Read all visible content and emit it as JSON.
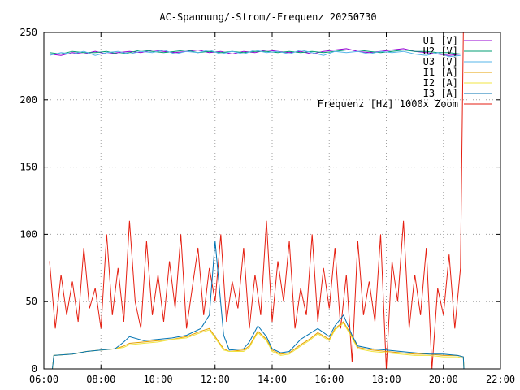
{
  "chart_data": {
    "type": "line",
    "title": "AC-Spannung/-Strom/-Frequenz 20250730",
    "xlabel": "",
    "ylabel": "",
    "xlim": [
      6,
      22
    ],
    "ylim": [
      0,
      250
    ],
    "x_ticks": [
      {
        "v": 6,
        "label": "06:00"
      },
      {
        "v": 8,
        "label": "08:00"
      },
      {
        "v": 10,
        "label": "10:00"
      },
      {
        "v": 12,
        "label": "12:00"
      },
      {
        "v": 14,
        "label": "14:00"
      },
      {
        "v": 16,
        "label": "16:00"
      },
      {
        "v": 18,
        "label": "18:00"
      },
      {
        "v": 20,
        "label": "20:00"
      },
      {
        "v": 22,
        "label": "22:00"
      }
    ],
    "y_ticks": [
      0,
      50,
      100,
      150,
      200,
      250
    ],
    "grid": true,
    "legend_position": "top-right",
    "series": [
      {
        "name": "U1 [V]",
        "color": "#9400d3",
        "x": [
          6.2,
          6.6,
          7.0,
          7.4,
          7.8,
          8.2,
          8.6,
          9.0,
          9.4,
          9.8,
          10.2,
          10.6,
          11.0,
          11.4,
          11.8,
          12.2,
          12.6,
          13.0,
          13.4,
          13.8,
          14.2,
          14.6,
          15.0,
          15.4,
          15.8,
          16.2,
          16.6,
          17.0,
          17.4,
          17.8,
          18.2,
          18.6,
          19.0,
          19.4,
          19.8,
          20.2,
          20.6
        ],
        "y": [
          234,
          233,
          235,
          234,
          236,
          234,
          235,
          236,
          235,
          237,
          236,
          235,
          236,
          237,
          235,
          236,
          234,
          236,
          235,
          237,
          236,
          235,
          236,
          234,
          236,
          237,
          238,
          236,
          235,
          236,
          237,
          238,
          236,
          235,
          234,
          233,
          234
        ]
      },
      {
        "name": "U2 [V]",
        "color": "#009e73",
        "x": [
          6.2,
          6.6,
          7.0,
          7.4,
          7.8,
          8.2,
          8.6,
          9.0,
          9.4,
          9.8,
          10.2,
          10.6,
          11.0,
          11.4,
          11.8,
          12.2,
          12.6,
          13.0,
          13.4,
          13.8,
          14.2,
          14.6,
          15.0,
          15.4,
          15.8,
          16.2,
          16.6,
          17.0,
          17.4,
          17.8,
          18.2,
          18.6,
          19.0,
          19.4,
          19.8,
          20.2,
          20.6
        ],
        "y": [
          235,
          234,
          236,
          235,
          235,
          236,
          234,
          235,
          237,
          236,
          235,
          236,
          237,
          235,
          236,
          235,
          236,
          235,
          236,
          236,
          235,
          236,
          235,
          236,
          235,
          236,
          237,
          237,
          236,
          235,
          236,
          237,
          236,
          236,
          235,
          235,
          234
        ]
      },
      {
        "name": "U3 [V]",
        "color": "#56b4e9",
        "x": [
          6.2,
          6.6,
          7.0,
          7.4,
          7.8,
          8.2,
          8.6,
          9.0,
          9.4,
          9.8,
          10.2,
          10.6,
          11.0,
          11.4,
          11.8,
          12.2,
          12.6,
          13.0,
          13.4,
          13.8,
          14.2,
          14.6,
          15.0,
          15.4,
          15.8,
          16.2,
          16.6,
          17.0,
          17.4,
          17.8,
          18.2,
          18.6,
          19.0,
          19.4,
          19.8,
          20.2,
          20.6
        ],
        "y": [
          233,
          235,
          234,
          236,
          233,
          235,
          236,
          234,
          236,
          235,
          237,
          234,
          236,
          235,
          237,
          234,
          236,
          234,
          237,
          235,
          236,
          234,
          237,
          235,
          233,
          236,
          235,
          236,
          234,
          236,
          235,
          236,
          234,
          233,
          235,
          232,
          233
        ]
      },
      {
        "name": "I1 [A]",
        "color": "#e69f00",
        "x": [
          6.3,
          6.35,
          7.0,
          7.5,
          8.0,
          8.5,
          8.8,
          9.0,
          9.5,
          10.0,
          10.5,
          11.0,
          11.5,
          11.8,
          12.0,
          12.3,
          12.5,
          13.0,
          13.2,
          13.5,
          13.8,
          14.0,
          14.3,
          14.6,
          15.0,
          15.3,
          15.6,
          16.0,
          16.2,
          16.5,
          16.8,
          17.0,
          17.5,
          18.0,
          18.5,
          19.0,
          19.5,
          20.0,
          20.5,
          20.7,
          20.72
        ],
        "y": [
          0,
          10,
          11,
          13,
          14,
          15,
          17,
          19,
          20,
          21,
          22,
          24,
          28,
          30,
          24,
          15,
          13,
          14,
          17,
          28,
          22,
          14,
          11,
          12,
          18,
          22,
          27,
          22,
          30,
          35,
          24,
          16,
          14,
          13,
          12,
          11,
          11,
          10,
          10,
          9,
          0
        ]
      },
      {
        "name": "I2 [A]",
        "color": "#f0e442",
        "x": [
          6.3,
          6.35,
          7.0,
          7.5,
          8.0,
          8.5,
          8.8,
          9.0,
          9.5,
          10.0,
          10.5,
          11.0,
          11.5,
          11.8,
          12.0,
          12.3,
          12.5,
          13.0,
          13.2,
          13.5,
          13.8,
          14.0,
          14.3,
          14.6,
          15.0,
          15.3,
          15.6,
          16.0,
          16.2,
          16.5,
          16.8,
          17.0,
          17.5,
          18.0,
          18.5,
          19.0,
          19.5,
          20.0,
          20.5,
          20.7,
          20.72
        ],
        "y": [
          0,
          10,
          11,
          13,
          14,
          15,
          16,
          18,
          19,
          20,
          22,
          23,
          27,
          29,
          23,
          14,
          13,
          13,
          16,
          27,
          21,
          13,
          10,
          11,
          17,
          21,
          26,
          21,
          29,
          34,
          23,
          15,
          13,
          12,
          11,
          10,
          10,
          9,
          9,
          8,
          0
        ]
      },
      {
        "name": "I3 [A]",
        "color": "#0072b2",
        "x": [
          6.3,
          6.35,
          7.0,
          7.5,
          8.0,
          8.5,
          8.8,
          9.0,
          9.5,
          10.0,
          10.5,
          11.0,
          11.5,
          11.8,
          12.0,
          12.3,
          12.5,
          13.0,
          13.2,
          13.5,
          13.8,
          14.0,
          14.3,
          14.6,
          15.0,
          15.3,
          15.6,
          16.0,
          16.2,
          16.5,
          16.8,
          17.0,
          17.5,
          18.0,
          18.5,
          19.0,
          19.5,
          20.0,
          20.5,
          20.7,
          20.72
        ],
        "y": [
          0,
          10,
          11,
          13,
          14,
          15,
          20,
          24,
          21,
          22,
          23,
          25,
          30,
          40,
          95,
          25,
          14,
          15,
          20,
          32,
          24,
          15,
          12,
          13,
          22,
          26,
          30,
          24,
          32,
          40,
          25,
          17,
          15,
          14,
          13,
          12,
          11,
          11,
          10,
          9,
          0
        ]
      },
      {
        "name": "Frequenz [Hz] 1000x Zoom",
        "color": "#e51e10",
        "x": [
          6.2,
          6.4,
          6.6,
          6.8,
          7.0,
          7.2,
          7.4,
          7.6,
          7.8,
          8.0,
          8.2,
          8.4,
          8.6,
          8.8,
          9.0,
          9.2,
          9.4,
          9.6,
          9.8,
          10.0,
          10.2,
          10.4,
          10.6,
          10.8,
          11.0,
          11.2,
          11.4,
          11.6,
          11.8,
          12.0,
          12.2,
          12.4,
          12.6,
          12.8,
          13.0,
          13.2,
          13.4,
          13.6,
          13.8,
          14.0,
          14.2,
          14.4,
          14.6,
          14.8,
          15.0,
          15.2,
          15.4,
          15.6,
          15.8,
          16.0,
          16.2,
          16.4,
          16.6,
          16.8,
          17.0,
          17.2,
          17.4,
          17.6,
          17.8,
          18.0,
          18.2,
          18.4,
          18.6,
          18.8,
          19.0,
          19.2,
          19.4,
          19.6,
          19.8,
          20.0,
          20.2,
          20.4,
          20.6,
          20.7
        ],
        "y": [
          80,
          30,
          70,
          40,
          65,
          35,
          90,
          45,
          60,
          30,
          100,
          40,
          75,
          35,
          110,
          50,
          30,
          95,
          40,
          70,
          35,
          80,
          45,
          100,
          30,
          60,
          90,
          40,
          75,
          50,
          100,
          35,
          65,
          45,
          90,
          30,
          70,
          40,
          110,
          35,
          80,
          50,
          95,
          30,
          60,
          40,
          100,
          35,
          75,
          45,
          90,
          30,
          70,
          5,
          95,
          40,
          65,
          35,
          100,
          0,
          80,
          50,
          110,
          30,
          70,
          40,
          90,
          0,
          60,
          40,
          85,
          30,
          75,
          250
        ]
      }
    ]
  }
}
